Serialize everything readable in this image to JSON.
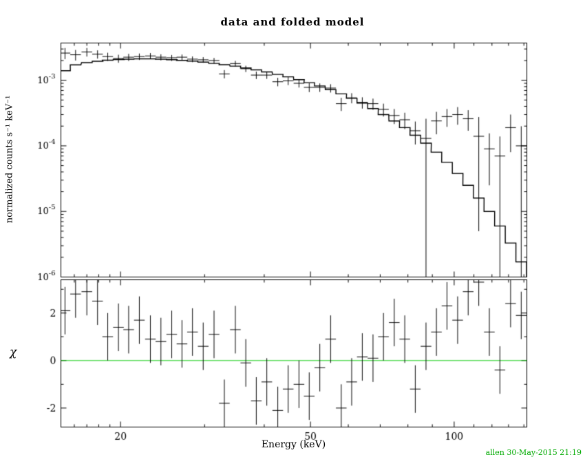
{
  "title": "data and folded model",
  "xlabel": "Energy (keV)",
  "ylabel_top": "normalized counts s⁻¹ keV⁻¹",
  "ylabel_bottom": "χ",
  "annotation": "allen 30-May-2015 21:19",
  "colors": {
    "data": "#000000",
    "model": "#000000",
    "frame": "#000000",
    "zero_line": "#00c800",
    "annotation": "#00aa00",
    "background": "#ffffff"
  },
  "chart_data": [
    {
      "type": "scatter",
      "panel": "spectrum",
      "title": "data and folded model",
      "xlabel": "Energy (keV)",
      "ylabel": "normalized counts s⁻¹ keV⁻¹",
      "xscale": "log",
      "yscale": "log",
      "xlim": [
        15,
        142
      ],
      "ylim": [
        1e-06,
        0.0037
      ],
      "grid": false,
      "legend": "none",
      "bin_half_width_factor": 1.026,
      "x": [
        15.3,
        16.1,
        17.0,
        17.9,
        18.8,
        19.8,
        20.8,
        21.9,
        23.1,
        24.3,
        25.6,
        26.9,
        28.3,
        29.8,
        31.4,
        33.0,
        34.8,
        36.6,
        38.5,
        40.5,
        42.7,
        44.9,
        47.3,
        49.7,
        52.3,
        55.1,
        58.0,
        61.0,
        64.2,
        67.6,
        71.1,
        74.9,
        78.8,
        82.9,
        87.3,
        91.8,
        96.6,
        101.7,
        107.0,
        112.6,
        118.5,
        124.7,
        131.3,
        138.2
      ],
      "series": [
        {
          "name": "data",
          "marker": "cross-with-errorbars",
          "color": "#000000",
          "values": [
            0.0026,
            0.00245,
            0.0027,
            0.0025,
            0.0023,
            0.00215,
            0.00225,
            0.0023,
            0.00235,
            0.00225,
            0.0022,
            0.00225,
            0.0021,
            0.00205,
            0.002,
            0.00125,
            0.0018,
            0.0015,
            0.0012,
            0.0012,
            0.00095,
            0.00098,
            0.0009,
            0.00078,
            0.00078,
            0.00076,
            0.00044,
            0.00054,
            0.00046,
            0.00044,
            0.00036,
            0.00029,
            0.00025,
            0.00017,
            0.00013,
            0.00024,
            0.00028,
            0.0003,
            0.00026,
            0.00014,
            9e-05,
            7e-05,
            0.00019,
            0.0001
          ],
          "yerr": [
            0.0005,
            0.00045,
            0.0004,
            0.00036,
            0.00033,
            0.0003,
            0.00028,
            0.00026,
            0.00025,
            0.00024,
            0.00023,
            0.00022,
            0.00021,
            0.0002,
            0.00019,
            0.00018,
            0.000175,
            0.000165,
            0.000155,
            0.00015,
            0.00014,
            0.000135,
            0.000125,
            0.00012,
            0.000115,
            0.00011,
            0.0001,
            9.5e-05,
            9e-05,
            8.5e-05,
            8e-05,
            7.5e-05,
            7e-05,
            6.5e-05,
            0.000129,
            9e-05,
            8.5e-05,
            9e-05,
            9e-05,
            0.000135,
            6.5e-05,
            6.9e-05,
            0.00011,
            9.9e-05
          ]
        },
        {
          "name": "folded model",
          "style": "step-line",
          "color": "#000000",
          "values": [
            0.0014,
            0.00172,
            0.00186,
            0.00195,
            0.00202,
            0.00207,
            0.0021,
            0.00212,
            0.00212,
            0.0021,
            0.00206,
            0.00201,
            0.00196,
            0.00189,
            0.00181,
            0.00173,
            0.00164,
            0.00154,
            0.00144,
            0.00134,
            0.00123,
            0.00113,
            0.00102,
            0.00092,
            0.00082,
            0.00072,
            0.00062,
            0.00053,
            0.00045,
            0.00037,
            0.0003,
            0.00024,
            0.00019,
            0.000145,
            0.00011,
            8e-05,
            5.6e-05,
            3.8e-05,
            2.5e-05,
            1.6e-05,
            1e-05,
            6e-06,
            3.3e-06,
            1.7e-06
          ]
        }
      ],
      "x_ticks": {
        "major": [
          20,
          50,
          100
        ],
        "labels": [
          "20",
          "50",
          "100"
        ],
        "minor": [
          16,
          17,
          18,
          19,
          30,
          40,
          60,
          70,
          80,
          90,
          110,
          120,
          130,
          140
        ]
      },
      "y_ticks": {
        "major": [
          0.001,
          0.0001,
          1e-05,
          1e-06
        ],
        "label_base": "10",
        "label_exponents": [
          "-3",
          "-4",
          "-5",
          "-6"
        ]
      }
    },
    {
      "type": "scatter",
      "panel": "residuals",
      "ylabel": "χ",
      "xscale": "log",
      "yscale": "linear",
      "xlim": [
        15,
        142
      ],
      "ylim": [
        -2.8,
        3.4
      ],
      "grid": false,
      "legend": "none",
      "bin_half_width_factor": 1.026,
      "x": [
        15.3,
        16.1,
        17.0,
        17.9,
        18.8,
        19.8,
        20.8,
        21.9,
        23.1,
        24.3,
        25.6,
        26.9,
        28.3,
        29.8,
        31.4,
        33.0,
        34.8,
        36.6,
        38.5,
        40.5,
        42.7,
        44.9,
        47.3,
        49.7,
        52.3,
        55.1,
        58.0,
        61.0,
        64.2,
        67.6,
        71.1,
        74.9,
        78.8,
        82.9,
        87.3,
        91.8,
        96.6,
        101.7,
        107.0,
        112.6,
        118.5,
        124.7,
        131.3,
        138.2
      ],
      "series": [
        {
          "name": "chi residuals",
          "marker": "cross-with-errorbars",
          "color": "#000000",
          "values": [
            2.1,
            2.8,
            2.9,
            2.5,
            1.0,
            1.4,
            1.3,
            1.7,
            0.9,
            0.8,
            1.1,
            0.7,
            1.2,
            0.6,
            1.1,
            -1.8,
            1.3,
            -0.1,
            -1.7,
            -0.9,
            -2.1,
            -1.2,
            -1.0,
            -1.5,
            -0.3,
            0.9,
            -2.0,
            -0.9,
            0.15,
            0.1,
            1.0,
            1.6,
            0.9,
            -1.2,
            0.6,
            1.2,
            2.3,
            1.7,
            2.9,
            3.3,
            1.2,
            -0.4,
            2.4,
            1.9
          ],
          "yerr_constant": 1.0
        }
      ],
      "zero_line": {
        "y": 0,
        "color": "#00c800"
      },
      "x_ticks": {
        "major": [
          20,
          50,
          100
        ],
        "labels": [
          "20",
          "50",
          "100"
        ],
        "minor": [
          16,
          17,
          18,
          19,
          30,
          40,
          60,
          70,
          80,
          90,
          110,
          120,
          130,
          140
        ]
      },
      "y_ticks": {
        "major": [
          -2,
          0,
          2
        ],
        "labels": [
          "-2",
          "0",
          "2"
        ],
        "minor": [
          -1,
          1,
          3
        ]
      }
    }
  ]
}
